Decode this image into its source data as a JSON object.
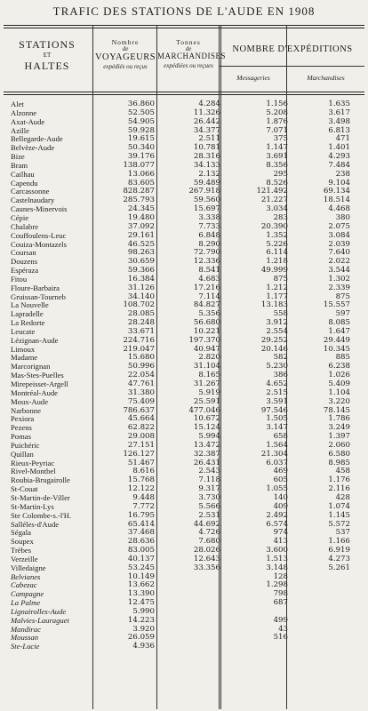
{
  "title": "TRAFIC DES STATIONS DE L'AUDE EN 1908",
  "headers": {
    "stations": "STATIONS",
    "et": "ET",
    "haltes": "HALTES",
    "nombre_de": "Nombre",
    "de1": "de",
    "voyageurs": "VOYAGEURS",
    "voy_sub": "expédiés ou reçus",
    "tonnes": "Tonnes",
    "de2": "de",
    "marchandises": "MARCHANDISES",
    "mar_sub": "expédiées ou reçues",
    "expeditions": "NOMBRE D'EXPÉDITIONS",
    "messageries": "Messageries",
    "marchandises_col": "Marchandises"
  },
  "rows": [
    {
      "name": "Alet",
      "voy": "36.860",
      "ton": "4.284",
      "mes": "1.156",
      "mar": "1.635"
    },
    {
      "name": "Alzonne",
      "voy": "52.505",
      "ton": "11.326",
      "mes": "5.208",
      "mar": "3.617"
    },
    {
      "name": "Axat-Aude",
      "voy": "54.905",
      "ton": "26.442",
      "mes": "1.876",
      "mar": "3.498"
    },
    {
      "name": "Azille",
      "voy": "59.928",
      "ton": "34.377",
      "mes": "7.071",
      "mar": "6.813"
    },
    {
      "name": "Bellegarde-Aude",
      "voy": "19.615",
      "ton": "2.511",
      "mes": "375",
      "mar": "471"
    },
    {
      "name": "Belvèze-Aude",
      "voy": "50.340",
      "ton": "10.781",
      "mes": "1.147",
      "mar": "1.401"
    },
    {
      "name": "Bize",
      "voy": "39.176",
      "ton": "28.316",
      "mes": "3.691",
      "mar": "4.293"
    },
    {
      "name": "Bram",
      "voy": "138.077",
      "ton": "34.133",
      "mes": "8.356",
      "mar": "7.484"
    },
    {
      "name": "Cailhau",
      "voy": "13.066",
      "ton": "2.132",
      "mes": "295",
      "mar": "238"
    },
    {
      "name": "Capendu",
      "voy": "83.605",
      "ton": "59.489",
      "mes": "8.526",
      "mar": "9.104"
    },
    {
      "name": "Carcassonne",
      "voy": "828.287",
      "ton": "267.918",
      "mes": "121.492",
      "mar": "69.134"
    },
    {
      "name": "Castelnaudary",
      "voy": "285.793",
      "ton": "59.560",
      "mes": "21.227",
      "mar": "18.514"
    },
    {
      "name": "Caunes-Minervois",
      "voy": "24.345",
      "ton": "15.697",
      "mes": "3.034",
      "mar": "4.468"
    },
    {
      "name": "Cépie",
      "voy": "19.480",
      "ton": "3.338",
      "mes": "283",
      "mar": "380"
    },
    {
      "name": "Chalabre",
      "voy": "37.092",
      "ton": "7.733",
      "mes": "20.390",
      "mar": "2.075"
    },
    {
      "name": "Couffoulens-Leuc",
      "voy": "29.161",
      "ton": "6.848",
      "mes": "1.352",
      "mar": "3.084"
    },
    {
      "name": "Couiza-Montazels",
      "voy": "46.525",
      "ton": "8.290",
      "mes": "5.226",
      "mar": "2.039"
    },
    {
      "name": "Coursan",
      "voy": "98.263",
      "ton": "72.790",
      "mes": "6.114",
      "mar": "7.640"
    },
    {
      "name": "Douzens",
      "voy": "30.659",
      "ton": "12.336",
      "mes": "1.218",
      "mar": "2.022"
    },
    {
      "name": "Espéraza",
      "voy": "59.366",
      "ton": "8.541",
      "mes": "49.999",
      "mar": "3.544"
    },
    {
      "name": "Fitou",
      "voy": "16.384",
      "ton": "4.683",
      "mes": "875",
      "mar": "1.302"
    },
    {
      "name": "Floure-Barbaira",
      "voy": "31.126",
      "ton": "17.216",
      "mes": "1.212",
      "mar": "2.339"
    },
    {
      "name": "Gruissan-Tourneb",
      "voy": "34.140",
      "ton": "7.114",
      "mes": "1.177",
      "mar": "875"
    },
    {
      "name": "La Nouvelle",
      "voy": "108.702",
      "ton": "84.827",
      "mes": "13.183",
      "mar": "15.557"
    },
    {
      "name": "Lapradelle",
      "voy": "28.085",
      "ton": "5.356",
      "mes": "558",
      "mar": "597"
    },
    {
      "name": "La Redorte",
      "voy": "28.248",
      "ton": "56.680",
      "mes": "3.912",
      "mar": "8.085"
    },
    {
      "name": "Leucate",
      "voy": "33.671",
      "ton": "10.221",
      "mes": "2.554",
      "mar": "1.647"
    },
    {
      "name": "Lézignan-Aude",
      "voy": "224.716",
      "ton": "197.370",
      "mes": "29.252",
      "mar": "29.449"
    },
    {
      "name": "Limoux",
      "voy": "219.047",
      "ton": "40.947",
      "mes": "20.146",
      "mar": "10.345"
    },
    {
      "name": "Madame",
      "voy": "15.680",
      "ton": "2.820",
      "mes": "582",
      "mar": "885"
    },
    {
      "name": "Marcorignan",
      "voy": "50.996",
      "ton": "31.104",
      "mes": "5.230",
      "mar": "6.238"
    },
    {
      "name": "Mas-Stes-Puelles",
      "voy": "22.054",
      "ton": "8.165",
      "mes": "386",
      "mar": "1.026"
    },
    {
      "name": "Mirepeisset-Argell",
      "voy": "47.761",
      "ton": "31.267",
      "mes": "4.652",
      "mar": "5.409"
    },
    {
      "name": "Montréal-Aude",
      "voy": "31.380",
      "ton": "5.919",
      "mes": "2.515",
      "mar": "1.104"
    },
    {
      "name": "Moux-Aude",
      "voy": "75.409",
      "ton": "25.591",
      "mes": "3.591",
      "mar": "3.220"
    },
    {
      "name": "Narbonne",
      "voy": "786.637",
      "ton": "477.046",
      "mes": "97.546",
      "mar": "78.145"
    },
    {
      "name": "Pexiora",
      "voy": "45.664",
      "ton": "10.672",
      "mes": "1.505",
      "mar": "1.786"
    },
    {
      "name": "Pezens",
      "voy": "62.822",
      "ton": "15.124",
      "mes": "3.147",
      "mar": "3.249"
    },
    {
      "name": "Pomas",
      "voy": "29.008",
      "ton": "5.994",
      "mes": "658",
      "mar": "1.397"
    },
    {
      "name": "Puichéric",
      "voy": "27.151",
      "ton": "13.472",
      "mes": "1.564",
      "mar": "2.060"
    },
    {
      "name": "Quillan",
      "voy": "126.127",
      "ton": "32.387",
      "mes": "21.304",
      "mar": "6.580"
    },
    {
      "name": "Rieux-Peyriac",
      "voy": "51.467",
      "ton": "26.431",
      "mes": "6.037",
      "mar": "8.985"
    },
    {
      "name": "Rivel-Montbel",
      "voy": "8.616",
      "ton": "2.543",
      "mes": "469",
      "mar": "458"
    },
    {
      "name": "Roubia-Brugairolle",
      "voy": "15.768",
      "ton": "7.118",
      "mes": "605",
      "mar": "1.176"
    },
    {
      "name": "St-Couat",
      "voy": "12.122",
      "ton": "9.317",
      "mes": "1.055",
      "mar": "2.116"
    },
    {
      "name": "St-Martin-de-Viller",
      "voy": "9.448",
      "ton": "3.730",
      "mes": "140",
      "mar": "428"
    },
    {
      "name": "St-Martin-Lys",
      "voy": "7.772",
      "ton": "5.566",
      "mes": "409",
      "mar": "1.074"
    },
    {
      "name": "Ste Colombe-s.-l'H.",
      "voy": "16.795",
      "ton": "2.531",
      "mes": "2.492",
      "mar": "1.145"
    },
    {
      "name": "Salléles-d'Aude",
      "voy": "65.414",
      "ton": "44.692",
      "mes": "6.574",
      "mar": "5.572"
    },
    {
      "name": "Ségala",
      "voy": "37.468",
      "ton": "4.726",
      "mes": "974",
      "mar": "537"
    },
    {
      "name": "Soupex",
      "voy": "28.636",
      "ton": "7.680",
      "mes": "413",
      "mar": "1.166"
    },
    {
      "name": "Trèbes",
      "voy": "83.005",
      "ton": "28.026",
      "mes": "3.600",
      "mar": "6.919"
    },
    {
      "name": "Verzeille",
      "voy": "40.137",
      "ton": "12.643",
      "mes": "1.513",
      "mar": "4.273"
    },
    {
      "name": "Villedaigne",
      "voy": "53.245",
      "ton": "33.356",
      "mes": "3.148",
      "mar": "5.261"
    },
    {
      "name": "Belvianes",
      "voy": "10.149",
      "ton": "",
      "mes": "128",
      "mar": "",
      "halte": true
    },
    {
      "name": "Cabezac",
      "voy": "13.662",
      "ton": "",
      "mes": "1.298",
      "mar": "",
      "halte": true
    },
    {
      "name": "Campagne",
      "voy": "13.390",
      "ton": "",
      "mes": "798",
      "mar": "",
      "halte": true
    },
    {
      "name": "La Palme",
      "voy": "12.475",
      "ton": "",
      "mes": "687",
      "mar": "",
      "halte": true
    },
    {
      "name": "Lignairolles-Aude",
      "voy": "5.990",
      "ton": "",
      "mes": "",
      "mar": "",
      "halte": true
    },
    {
      "name": "Malvies-Lauraguet",
      "voy": "14.223",
      "ton": "",
      "mes": "499",
      "mar": "",
      "halte": true
    },
    {
      "name": "Mandirac",
      "voy": "3.920",
      "ton": "",
      "mes": "43",
      "mar": "",
      "halte": true
    },
    {
      "name": "Moussan",
      "voy": "26.059",
      "ton": "",
      "mes": "516",
      "mar": "",
      "halte": true
    },
    {
      "name": "Ste-Lucie",
      "voy": "4.936",
      "ton": "",
      "mes": "",
      "mar": "",
      "halte": true
    }
  ]
}
